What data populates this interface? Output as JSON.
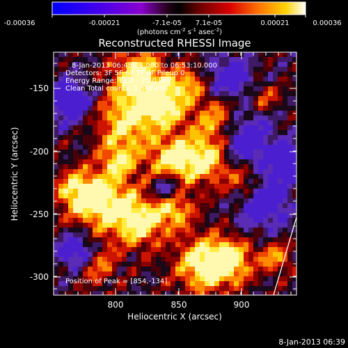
{
  "colorbar": {
    "tick_labels": [
      "-0.00036",
      "-0.00021",
      "-7.1e-05",
      "7.1e-05",
      "0.00021",
      "0.00036"
    ],
    "unit_text": "(photons cm",
    "unit_exp1": "-2",
    "unit_mid": " s",
    "unit_exp2": "-1",
    "unit_end": " asec",
    "unit_exp3": "-2",
    "unit_close": ")"
  },
  "title": "Reconstructed RHESSI Image",
  "annotations": {
    "line1": "8-Jan-2013 06:48:24.000 to 06:53:10.000",
    "line2": "Detectors: 3F 5F 6F 7F 8F  Pileup 0",
    "line3": "Energy Range: 12.0 - 25.0 keV",
    "line4": "Clean     Total counts: 1.50E+04",
    "peak": "Position of Peak = [854,-134]"
  },
  "axes": {
    "xlabel": "Heliocentric X (arcsec)",
    "ylabel": "Heliocentric Y (arcsec)",
    "x_ticks": [
      "800",
      "850",
      "900"
    ],
    "y_ticks": [
      "-150",
      "-200",
      "-250",
      "-300"
    ]
  },
  "footer": {
    "timestamp": "8-Jan-2013 06:39"
  }
}
